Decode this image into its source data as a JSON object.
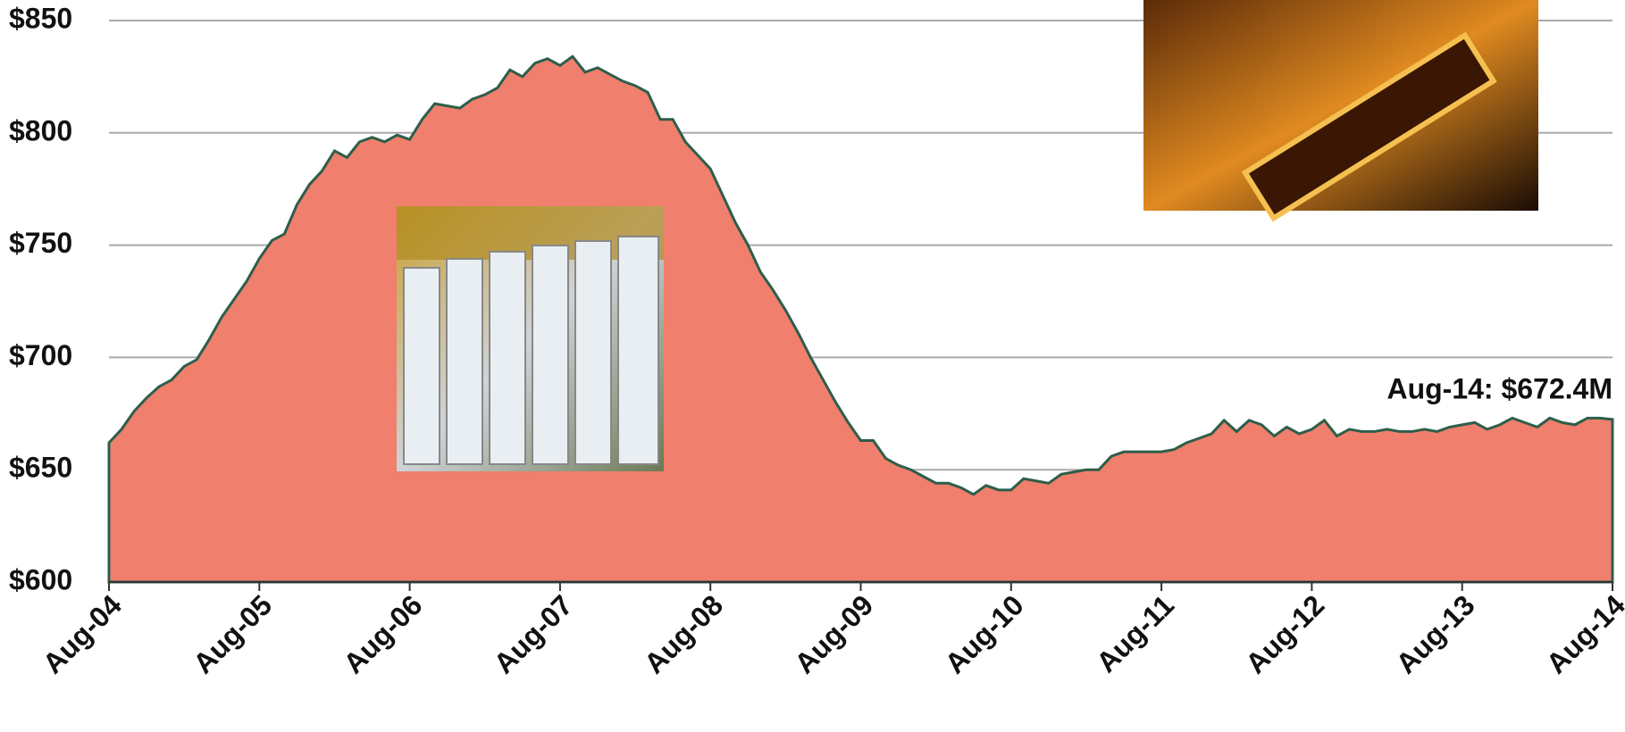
{
  "chart_data": {
    "type": "area",
    "annotation": "Aug-14: $672.4M",
    "categories": [
      "Aug-04",
      null,
      null,
      null,
      null,
      null,
      null,
      null,
      null,
      null,
      null,
      null,
      "Aug-05",
      null,
      null,
      null,
      null,
      null,
      null,
      null,
      null,
      null,
      null,
      null,
      "Aug-06",
      null,
      null,
      null,
      null,
      null,
      null,
      null,
      null,
      null,
      null,
      null,
      "Aug-07",
      null,
      null,
      null,
      null,
      null,
      null,
      null,
      null,
      null,
      null,
      null,
      "Aug-08",
      null,
      null,
      null,
      null,
      null,
      null,
      null,
      null,
      null,
      null,
      null,
      "Aug-09",
      null,
      null,
      null,
      null,
      null,
      null,
      null,
      null,
      null,
      null,
      null,
      "Aug-10",
      null,
      null,
      null,
      null,
      null,
      null,
      null,
      null,
      null,
      null,
      null,
      "Aug-11",
      null,
      null,
      null,
      null,
      null,
      null,
      null,
      null,
      null,
      null,
      null,
      "Aug-12",
      null,
      null,
      null,
      null,
      null,
      null,
      null,
      null,
      null,
      null,
      null,
      "Aug-13",
      null,
      null,
      null,
      null,
      null,
      null,
      null,
      null,
      null,
      null,
      null,
      "Aug-14"
    ],
    "values": [
      662,
      668,
      676,
      682,
      687,
      690,
      696,
      699,
      708,
      718,
      726,
      734,
      744,
      752,
      755,
      768,
      777,
      783,
      792,
      789,
      796,
      798,
      796,
      799,
      797,
      806,
      813,
      812,
      811,
      815,
      817,
      820,
      828,
      825,
      831,
      833,
      830,
      834,
      827,
      829,
      826,
      823,
      821,
      818,
      806,
      806,
      796,
      790,
      784,
      772,
      760,
      750,
      738,
      730,
      721,
      711,
      700,
      690,
      680,
      671,
      663,
      663,
      655,
      652,
      650,
      647,
      644,
      644,
      642,
      639,
      643,
      641,
      641,
      646,
      645,
      644,
      648,
      649,
      650,
      650,
      656,
      658,
      658,
      658,
      658,
      659,
      662,
      664,
      666,
      672,
      667,
      672,
      670,
      665,
      669,
      666,
      668,
      672,
      665,
      668,
      667,
      667,
      668,
      667,
      667,
      668,
      667,
      669,
      670,
      671,
      668,
      670,
      673,
      671,
      669,
      673,
      671,
      670,
      673,
      673,
      672.4
    ],
    "color": "#f07f6d",
    "line_color": "#2d5e4a",
    "ylim": [
      600,
      850
    ],
    "yticks": [
      {
        "value": 600,
        "label": "$600"
      },
      {
        "value": 650,
        "label": "$650"
      },
      {
        "value": 700,
        "label": "$700"
      },
      {
        "value": 750,
        "label": "$750"
      },
      {
        "value": 800,
        "label": "$800"
      },
      {
        "value": 850,
        "label": "$850"
      }
    ],
    "grid": true
  }
}
